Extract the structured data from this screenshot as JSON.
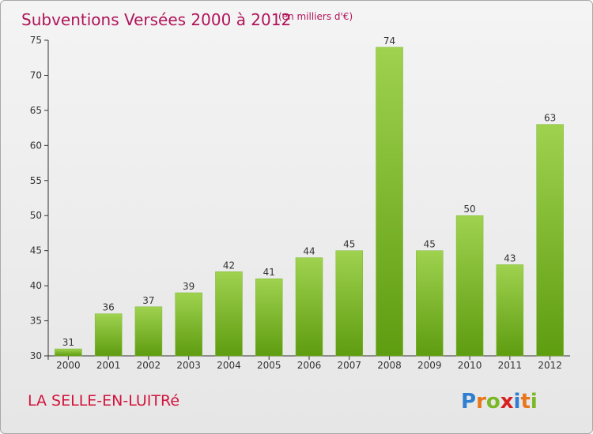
{
  "title": "Subventions Versées 2000 à 2012",
  "subtitle": "(en milliers d'€)",
  "footer": {
    "location": "LA SELLE-EN-LUITRé",
    "logo": {
      "letters": [
        "P",
        "r",
        "o",
        "x",
        "i",
        "t",
        "i"
      ],
      "colors": [
        "#2f7fd0",
        "#e8761a",
        "#7ab828",
        "#d82020",
        "#2f7fd0",
        "#e8761a",
        "#7ab828"
      ]
    }
  },
  "colors": {
    "bar_top": "#9fd24f",
    "bar_bottom": "#5e9c10",
    "title": "#b0145a",
    "location": "#d2143c"
  },
  "chart_data": {
    "type": "bar",
    "categories": [
      "2000",
      "2001",
      "2002",
      "2003",
      "2004",
      "2005",
      "2006",
      "2007",
      "2008",
      "2009",
      "2010",
      "2011",
      "2012"
    ],
    "values": [
      31,
      36,
      37,
      39,
      42,
      41,
      44,
      45,
      74,
      45,
      50,
      43,
      63
    ],
    "ylim": [
      30,
      75
    ],
    "yticks": [
      30,
      35,
      40,
      45,
      50,
      55,
      60,
      65,
      70,
      75
    ],
    "grid": false,
    "title": "Subventions Versées 2000 à 2012",
    "xlabel": "",
    "ylabel": ""
  }
}
